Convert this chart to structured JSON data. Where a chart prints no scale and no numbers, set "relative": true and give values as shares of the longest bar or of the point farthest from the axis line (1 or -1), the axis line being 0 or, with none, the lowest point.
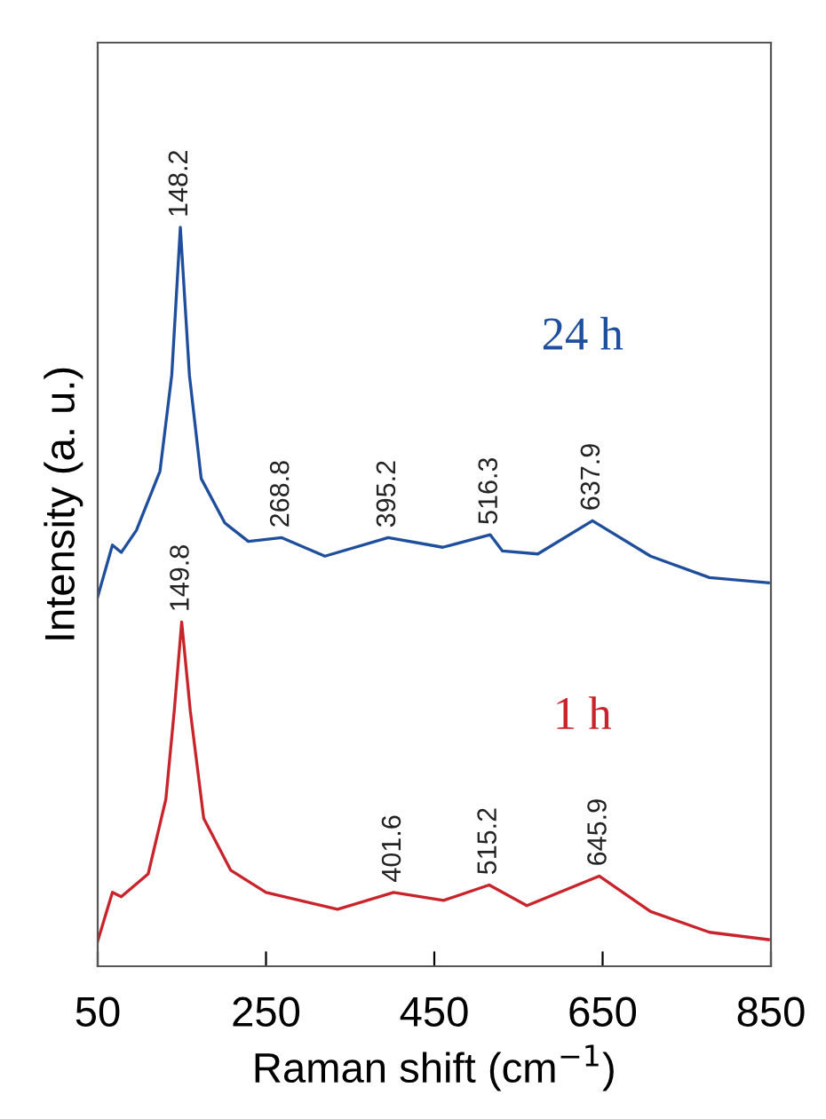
{
  "chart_data": {
    "type": "line",
    "relative": true,
    "xlabel": "Raman shift (cm$^{−1}$)",
    "ylabel": "Intensity (a. u.)",
    "xlim": [
      50,
      850
    ],
    "xticks": [
      50,
      250,
      450,
      650,
      850
    ],
    "grid": false,
    "legend": false,
    "marker": "none",
    "line_style": "solid",
    "tick_labels": "x",
    "series": [
      {
        "name": "24 h",
        "color": "#1f4e9c",
        "x": [
          50,
          67.5,
          78,
          96,
          124,
          138,
          148.2,
          159,
          173,
          201,
          229,
          268.8,
          320,
          395.2,
          460,
          516.3,
          531,
          573,
          637.9,
          707,
          777,
          847
        ],
        "values": [
          0.5,
          0.57,
          0.56,
          0.59,
          0.67,
          0.8,
          1.0,
          0.8,
          0.66,
          0.6,
          0.575,
          0.58,
          0.555,
          0.58,
          0.567,
          0.584,
          0.562,
          0.558,
          0.603,
          0.555,
          0.526,
          0.519
        ]
      },
      {
        "name": "1 h",
        "color": "#c8242b",
        "x": [
          50,
          67.5,
          78,
          110,
          131,
          141,
          149.8,
          160,
          176,
          208,
          250,
          335,
          401.6,
          461,
          515.2,
          560,
          645.9,
          707,
          777,
          847
        ],
        "values": [
          0.034,
          0.1,
          0.094,
          0.125,
          0.226,
          0.346,
          0.466,
          0.346,
          0.2,
          0.13,
          0.1,
          0.077,
          0.1,
          0.089,
          0.11,
          0.082,
          0.122,
          0.074,
          0.046,
          0.036
        ]
      }
    ],
    "annotations": [
      {
        "text": "148.2",
        "x": 148.2,
        "y": 1.0
      },
      {
        "text": "268.8",
        "x": 268.8,
        "y": 0.58
      },
      {
        "text": "395.2",
        "x": 395.2,
        "y": 0.58
      },
      {
        "text": "516.3",
        "x": 516.3,
        "y": 0.584
      },
      {
        "text": "637.9",
        "x": 637.9,
        "y": 0.603
      },
      {
        "text": "149.8",
        "x": 149.8,
        "y": 0.466
      },
      {
        "text": "401.6",
        "x": 401.6,
        "y": 0.1
      },
      {
        "text": "515.2",
        "x": 515.2,
        "y": 0.11
      },
      {
        "text": "645.9",
        "x": 645.9,
        "y": 0.122
      }
    ]
  }
}
